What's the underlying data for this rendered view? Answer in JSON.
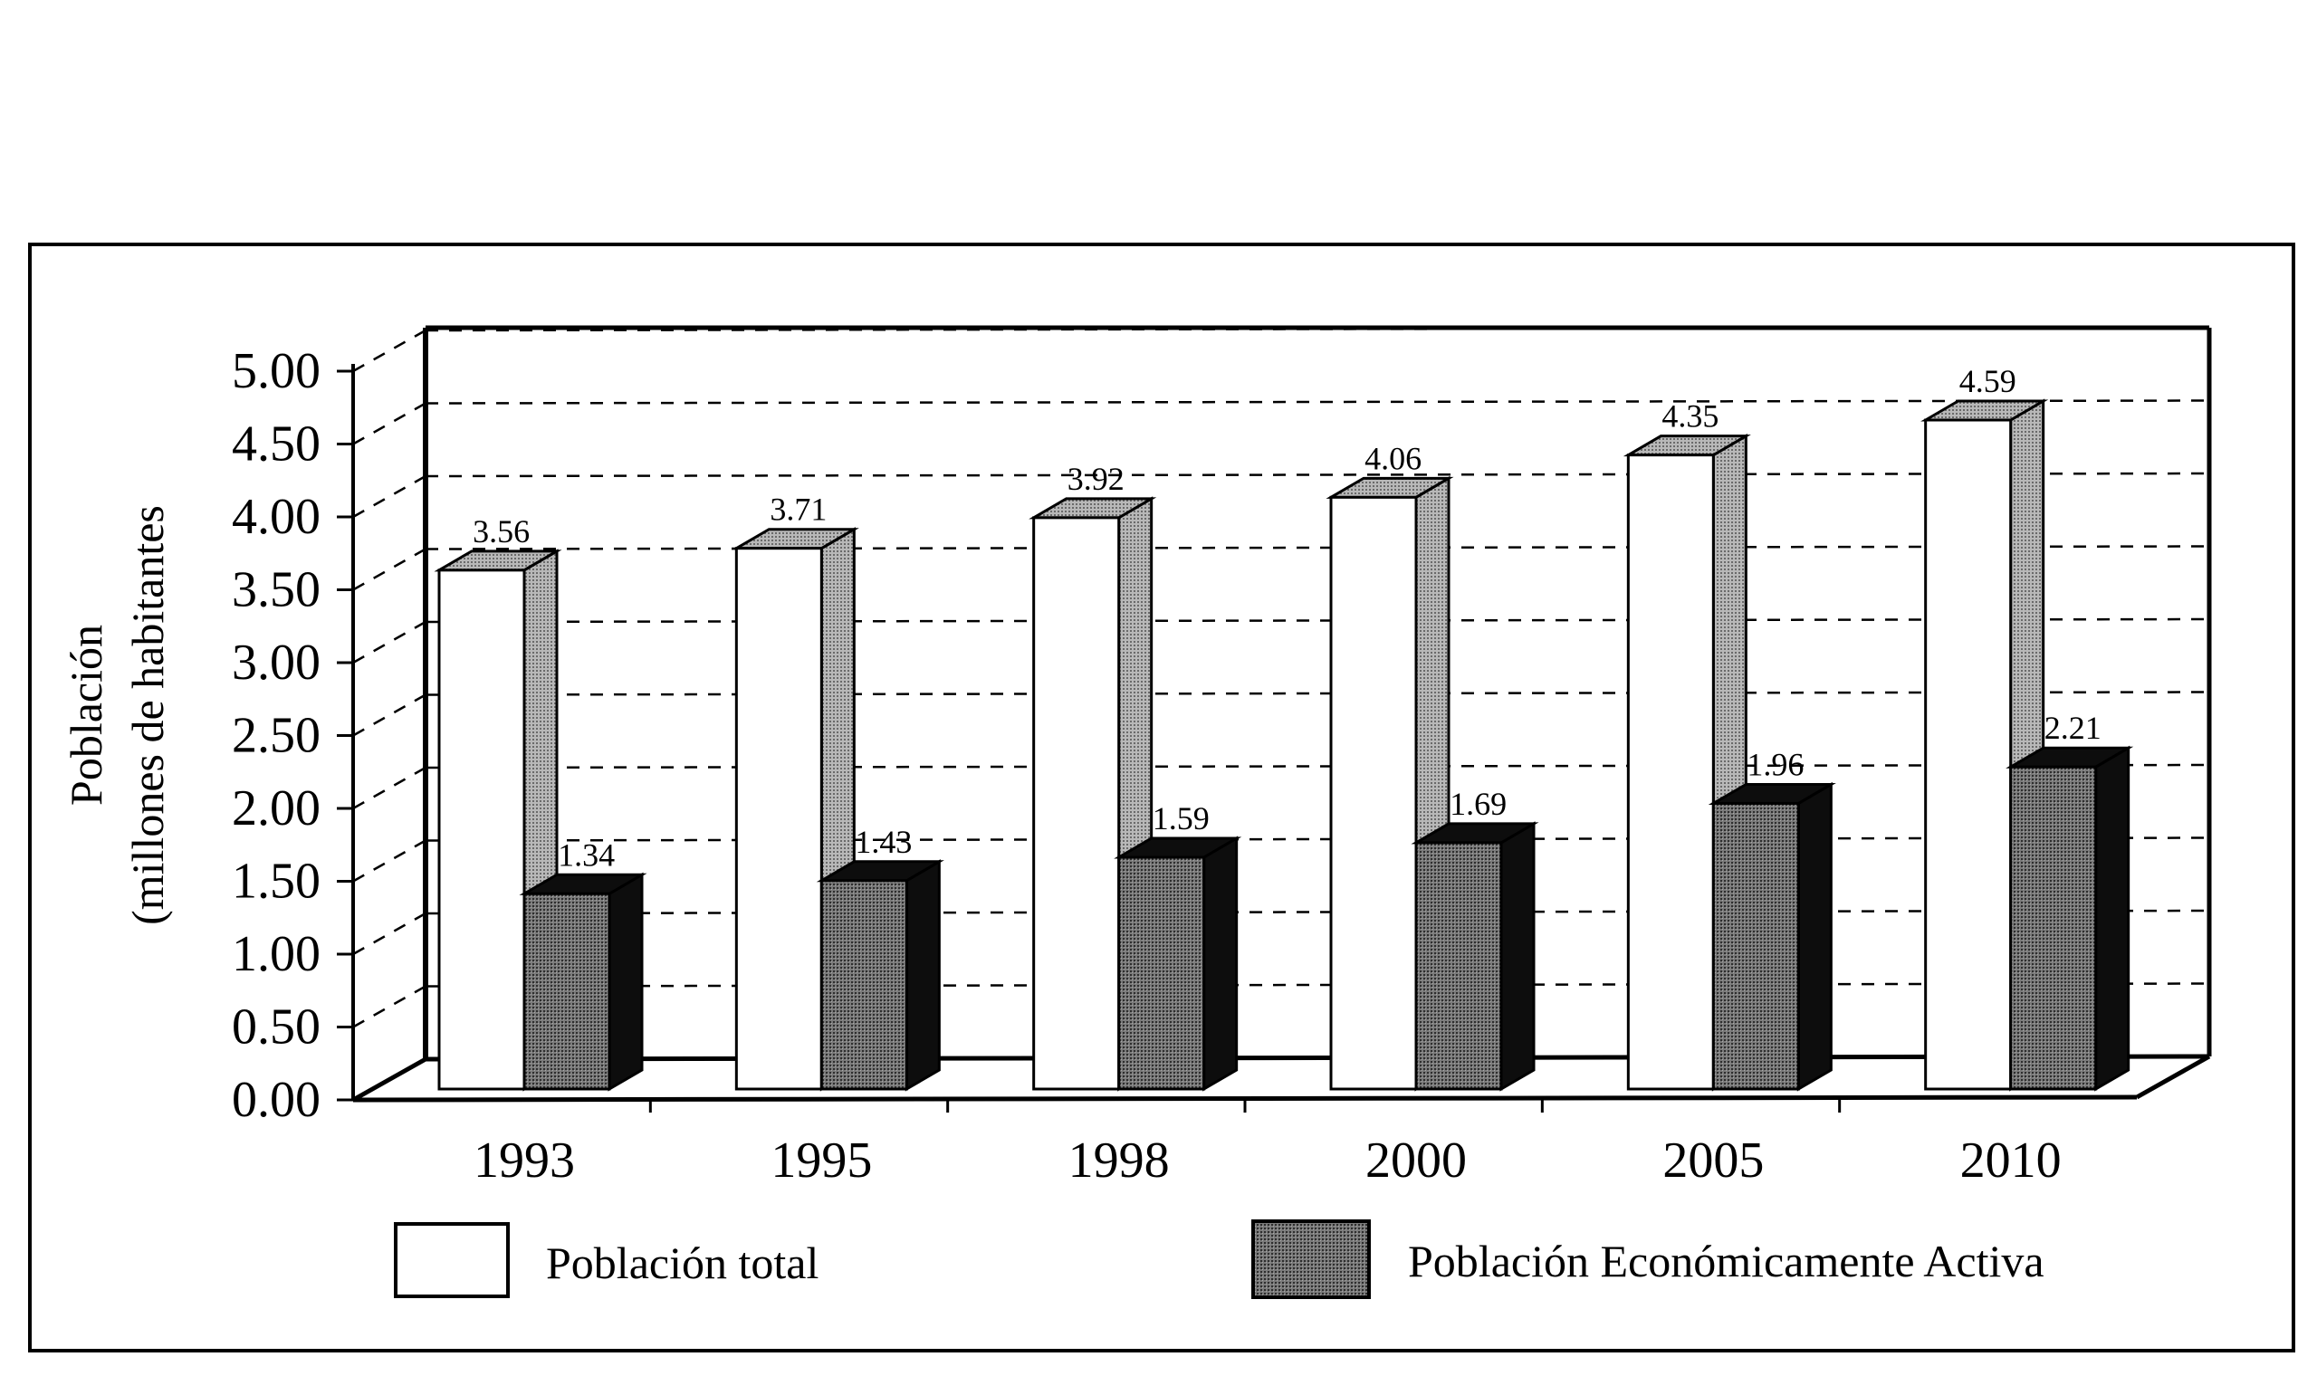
{
  "chart_data": {
    "type": "bar",
    "title": "",
    "xlabel": "",
    "ylabel_lines": [
      "Población",
      "(millones de habitantes"
    ],
    "categories": [
      "1993",
      "1995",
      "1998",
      "2000",
      "2005",
      "2010"
    ],
    "series": [
      {
        "name": "Población total",
        "values": [
          3.56,
          3.71,
          3.92,
          4.06,
          4.35,
          4.59
        ],
        "labels": [
          "3.56",
          "3.71",
          "3.92",
          "4.06",
          "4.35",
          "4.59"
        ],
        "color": "#ffffff",
        "side_color": "#9a9a9a"
      },
      {
        "name": "Población Económicamente Activa",
        "values": [
          1.34,
          1.43,
          1.59,
          1.69,
          1.96,
          2.21
        ],
        "labels": [
          "1.34",
          "1.43",
          "1.59",
          "1.69",
          "1.96",
          "2.21"
        ],
        "color": "#5a5a5a",
        "side_color": "#111111"
      }
    ],
    "ylim": [
      0,
      5
    ],
    "yticks": [
      "0.00",
      "0.50",
      "1.00",
      "1.50",
      "2.00",
      "2.50",
      "3.00",
      "3.50",
      "4.00",
      "4.50",
      "5.00"
    ],
    "grid": true,
    "grid_style": "dashed",
    "legend_position": "bottom",
    "style": "3d"
  }
}
